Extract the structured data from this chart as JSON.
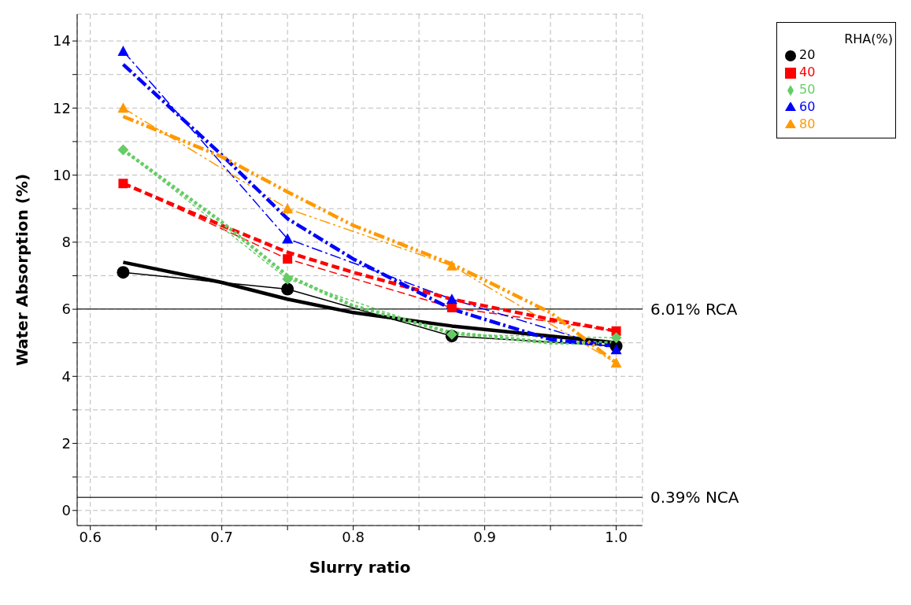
{
  "chart_data": {
    "type": "line",
    "xlabel": "Slurry ratio",
    "ylabel": "Water Absorption (%)",
    "legend_title": "RHA(%)",
    "xlim": [
      0.59,
      1.02
    ],
    "ylim": [
      -0.45,
      14.8
    ],
    "xticks": [
      0.6,
      {
        "value": 0.65,
        "label": null
      },
      0.7,
      {
        "value": 0.75,
        "label": null
      },
      0.8,
      {
        "value": 0.85,
        "label": null
      },
      0.9,
      {
        "value": 0.95,
        "label": null
      },
      {
        "value": 1.0,
        "label": "1.0"
      }
    ],
    "yticks": [
      0,
      {
        "value": 1,
        "label": null
      },
      2,
      {
        "value": 3,
        "label": null
      },
      4,
      {
        "value": 5,
        "label": null
      },
      6,
      {
        "value": 7,
        "label": null
      },
      8,
      {
        "value": 9,
        "label": null
      },
      10,
      {
        "value": 11,
        "label": null
      },
      12,
      {
        "value": 13,
        "label": null
      },
      14
    ],
    "grid": true,
    "legend": "right",
    "series": [
      {
        "name": "20",
        "color": "#000000",
        "marker": "circle",
        "line_style": "solid",
        "x": [
          0.625,
          0.75,
          0.875,
          1.0
        ],
        "values": [
          7.1,
          6.6,
          5.2,
          4.9
        ]
      },
      {
        "name": "40",
        "color": "#ff0000",
        "marker": "square",
        "line_style": "dashed",
        "x": [
          0.625,
          0.75,
          0.875,
          1.0
        ],
        "values": [
          9.75,
          7.5,
          6.05,
          5.35
        ]
      },
      {
        "name": "50",
        "color": "#66cc66",
        "marker": "diamond",
        "line_style": "dotted",
        "x": [
          0.625,
          0.75,
          0.875,
          1.0
        ],
        "values": [
          10.75,
          6.9,
          5.25,
          5.15
        ]
      },
      {
        "name": "60",
        "color": "#0000ff",
        "marker": "triangle",
        "line_style": "dashdot",
        "x": [
          0.625,
          0.75,
          0.875,
          1.0
        ],
        "values": [
          13.7,
          8.1,
          6.3,
          4.8
        ]
      },
      {
        "name": "80",
        "color": "#ff9900",
        "marker": "triangle",
        "line_style": "dashdotdot",
        "x": [
          0.625,
          0.75,
          0.875,
          1.0
        ],
        "values": [
          12.0,
          9.0,
          7.3,
          4.4
        ]
      },
      {
        "color": "#000000",
        "marker": "none",
        "line_style": "solid",
        "x": [
          0.625,
          0.7,
          0.75,
          0.8,
          0.875,
          0.95,
          1.0
        ],
        "values": [
          7.4,
          6.8,
          6.3,
          5.9,
          5.5,
          5.2,
          5.0
        ]
      },
      {
        "color": "#ff0000",
        "marker": "none",
        "line_style": "dashed",
        "x": [
          0.625,
          0.7,
          0.75,
          0.8,
          0.875,
          0.95,
          1.0
        ],
        "values": [
          9.75,
          8.5,
          7.7,
          7.1,
          6.3,
          5.7,
          5.35
        ]
      },
      {
        "color": "#66cc66",
        "marker": "none",
        "line_style": "dotted",
        "x": [
          0.625,
          0.7,
          0.75,
          0.8,
          0.875,
          0.95,
          1.0
        ],
        "values": [
          10.75,
          8.6,
          7.0,
          6.1,
          5.3,
          5.0,
          5.0
        ]
      },
      {
        "color": "#0000ff",
        "marker": "none",
        "line_style": "dashdot",
        "x": [
          0.625,
          0.7,
          0.75,
          0.8,
          0.875,
          0.95,
          1.0
        ],
        "values": [
          13.3,
          10.6,
          8.7,
          7.5,
          6.0,
          5.1,
          4.9
        ]
      },
      {
        "color": "#ff9900",
        "marker": "none",
        "line_style": "dashdotdot",
        "x": [
          0.625,
          0.7,
          0.75,
          0.8,
          0.875,
          0.95,
          1.0
        ],
        "values": [
          11.75,
          10.55,
          9.5,
          8.5,
          7.35,
          5.9,
          4.4
        ]
      }
    ],
    "ref_lines": [
      {
        "axis": "y",
        "value": 6.01,
        "label": "6.01% RCA",
        "color": "#404040"
      },
      {
        "axis": "y",
        "value": 0.39,
        "label": "0.39% NCA",
        "color": "#404040"
      }
    ]
  }
}
